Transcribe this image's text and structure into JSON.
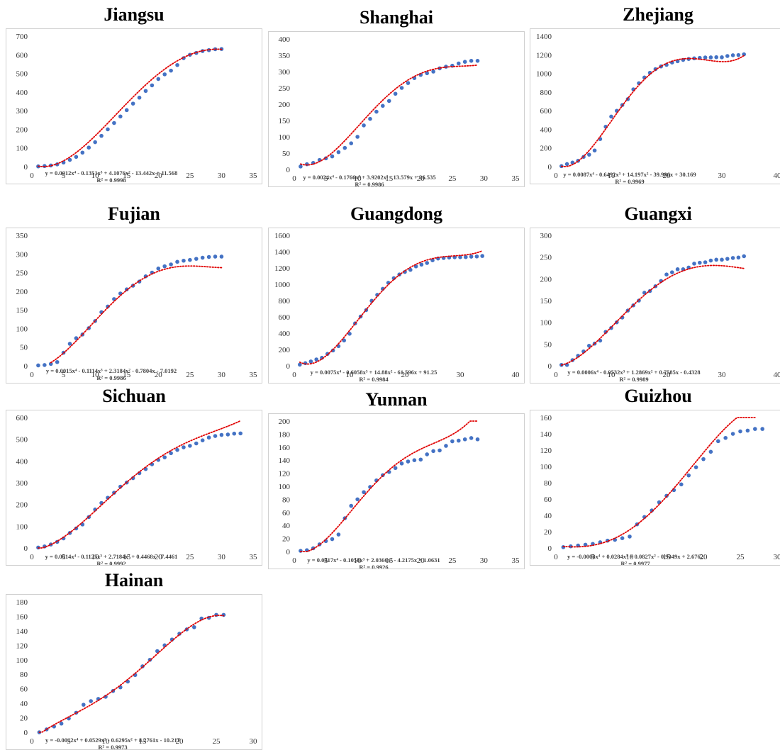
{
  "chart_data": [
    {
      "type": "scatter",
      "title": "Jiangsu",
      "xlim": [
        0,
        35
      ],
      "ylim": [
        0,
        700
      ],
      "xticks": [
        0,
        5,
        10,
        15,
        20,
        25,
        30,
        35
      ],
      "yticks": [
        0,
        100,
        200,
        300,
        400,
        500,
        600,
        700
      ],
      "trendline": {
        "equation": "y = 0.0012x⁴ - 0.1351x³ + 4.1076x² - 13.442x + 11.568",
        "r2": "R² = 0.9998",
        "coef": [
          11.568,
          -13.442,
          4.1076,
          -0.1351,
          0.0012
        ],
        "x_range": [
          1,
          30
        ]
      },
      "x": [
        1,
        2,
        3,
        4,
        5,
        6,
        7,
        8,
        9,
        10,
        11,
        12,
        13,
        14,
        15,
        16,
        17,
        18,
        19,
        20,
        21,
        22,
        23,
        24,
        25,
        26,
        27,
        28,
        29,
        30
      ],
      "y": [
        1,
        3,
        6,
        12,
        22,
        36,
        52,
        75,
        102,
        131,
        165,
        200,
        234,
        269,
        303,
        338,
        370,
        406,
        436,
        470,
        495,
        515,
        545,
        582,
        600,
        610,
        620,
        625,
        630,
        631
      ],
      "grid": false,
      "legend": "none",
      "colors": {
        "points": "#4472c4",
        "trend": "#e00000"
      }
    },
    {
      "type": "scatter",
      "title": "Shanghai",
      "xlim": [
        0,
        35
      ],
      "ylim": [
        0,
        400
      ],
      "xticks": [
        0,
        5,
        10,
        15,
        20,
        25,
        30,
        35
      ],
      "yticks": [
        0,
        50,
        100,
        150,
        200,
        250,
        300,
        350,
        400
      ],
      "trendline": {
        "equation": "y = 0.0024x⁴ - 0.1766x³ + 3.9202x² - 13.579x + 26.535",
        "r2": "R² = 0.9986",
        "coef": [
          26.535,
          -13.579,
          3.9202,
          -0.1766,
          0.0024
        ],
        "x_range": [
          1,
          29
        ]
      },
      "x": [
        1,
        2,
        3,
        4,
        5,
        6,
        7,
        8,
        9,
        10,
        11,
        12,
        13,
        14,
        15,
        16,
        17,
        18,
        19,
        20,
        21,
        22,
        23,
        24,
        25,
        26,
        27,
        28,
        29
      ],
      "y": [
        9,
        16,
        20,
        29,
        34,
        40,
        53,
        66,
        80,
        100,
        135,
        155,
        177,
        195,
        210,
        232,
        250,
        265,
        280,
        290,
        295,
        300,
        310,
        315,
        318,
        325,
        330,
        333,
        333
      ],
      "grid": false,
      "legend": "none",
      "colors": {
        "points": "#4472c4",
        "trend": "#e00000"
      }
    },
    {
      "type": "scatter",
      "title": "Zhejiang",
      "xlim": [
        0,
        40
      ],
      "ylim": [
        0,
        1400
      ],
      "xticks": [
        0,
        10,
        20,
        30,
        40
      ],
      "yticks": [
        0,
        200,
        400,
        600,
        800,
        1000,
        1200,
        1400
      ],
      "trendline": {
        "equation": "y = 0.0087x⁴ - 0.6492x³ + 14.197x² - 39.986x + 30.169",
        "r2": "R² = 0.9969",
        "coef": [
          30.169,
          -39.986,
          14.197,
          -0.6492,
          0.0087
        ],
        "x_range": [
          1,
          34
        ]
      },
      "x": [
        1,
        2,
        3,
        4,
        5,
        6,
        7,
        8,
        9,
        10,
        11,
        12,
        13,
        14,
        15,
        16,
        17,
        18,
        19,
        20,
        21,
        22,
        23,
        24,
        25,
        26,
        27,
        28,
        29,
        30,
        31,
        32,
        33,
        34
      ],
      "y": [
        5,
        27,
        43,
        62,
        104,
        128,
        173,
        296,
        428,
        537,
        599,
        661,
        724,
        829,
        895,
        956,
        1007,
        1046,
        1075,
        1092,
        1117,
        1131,
        1145,
        1155,
        1162,
        1167,
        1171,
        1172,
        1174,
        1173,
        1187,
        1195,
        1197,
        1205
      ],
      "grid": false,
      "legend": "none",
      "colors": {
        "points": "#4472c4",
        "trend": "#e00000"
      }
    },
    {
      "type": "scatter",
      "title": "Fujian",
      "xlim": [
        0,
        35
      ],
      "ylim": [
        0,
        350
      ],
      "xticks": [
        0,
        5,
        10,
        15,
        20,
        25,
        30,
        35
      ],
      "yticks": [
        0,
        50,
        100,
        150,
        200,
        250,
        300,
        350
      ],
      "trendline": {
        "equation": "y = 0.0015x⁴ - 0.1114x³ + 2.3184x² - 0.7804x - 7.0192",
        "r2": "R² = 0.9986",
        "coef": [
          -7.0192,
          -0.7804,
          2.3184,
          -0.1114,
          0.0015
        ],
        "x_range": [
          3,
          30
        ]
      },
      "x": [
        1,
        2,
        3,
        4,
        5,
        6,
        7,
        8,
        9,
        10,
        11,
        12,
        13,
        14,
        15,
        16,
        17,
        18,
        19,
        20,
        21,
        22,
        23,
        24,
        25,
        26,
        27,
        28,
        29,
        30
      ],
      "y": [
        1,
        2,
        5,
        10,
        35,
        59,
        74,
        84,
        101,
        120,
        144,
        159,
        179,
        194,
        205,
        215,
        226,
        240,
        250,
        261,
        267,
        272,
        279,
        282,
        284,
        287,
        290,
        292,
        293,
        293
      ],
      "grid": false,
      "legend": "none",
      "colors": {
        "points": "#4472c4",
        "trend": "#e00000"
      }
    },
    {
      "type": "scatter",
      "title": "Guangdong",
      "xlim": [
        0,
        40
      ],
      "ylim": [
        0,
        1600
      ],
      "xticks": [
        0,
        10,
        20,
        30,
        40
      ],
      "yticks": [
        0,
        200,
        400,
        600,
        800,
        1000,
        1200,
        1400,
        1600
      ],
      "trendline": {
        "equation": "y = 0.0075x⁴ - 0.6058x³ + 14.88x² - 61.596x + 91.25",
        "r2": "R² = 0.9984",
        "coef": [
          91.25,
          -61.596,
          14.88,
          -0.6058,
          0.0075
        ],
        "x_range": [
          1,
          34
        ]
      },
      "x": [
        1,
        2,
        3,
        4,
        5,
        6,
        7,
        8,
        9,
        10,
        11,
        12,
        13,
        14,
        15,
        16,
        17,
        18,
        19,
        20,
        21,
        22,
        23,
        24,
        25,
        26,
        27,
        28,
        29,
        30,
        31,
        32,
        33,
        34
      ],
      "y": [
        14,
        32,
        53,
        78,
        98,
        146,
        188,
        241,
        311,
        393,
        520,
        604,
        683,
        797,
        870,
        944,
        1018,
        1075,
        1120,
        1151,
        1177,
        1219,
        1241,
        1261,
        1294,
        1316,
        1322,
        1328,
        1331,
        1332,
        1333,
        1339,
        1341,
        1347
      ],
      "grid": false,
      "legend": "none",
      "colors": {
        "points": "#4472c4",
        "trend": "#e00000"
      }
    },
    {
      "type": "scatter",
      "title": "Guangxi",
      "xlim": [
        0,
        40
      ],
      "ylim": [
        0,
        300
      ],
      "xticks": [
        0,
        10,
        20,
        30,
        40
      ],
      "yticks": [
        0,
        50,
        100,
        150,
        200,
        250,
        300
      ],
      "trendline": {
        "equation": "y = 0.0006x⁴ - 0.0532x³ + 1.2869x² + 0.7585x - 0.4328",
        "r2": "R² = 0.9989",
        "coef": [
          -0.4328,
          0.7585,
          1.2869,
          -0.0532,
          0.0006
        ],
        "x_range": [
          1,
          34
        ]
      },
      "x": [
        1,
        2,
        3,
        4,
        5,
        6,
        7,
        8,
        9,
        10,
        11,
        12,
        13,
        14,
        15,
        16,
        17,
        18,
        19,
        20,
        21,
        22,
        23,
        24,
        25,
        26,
        27,
        28,
        29,
        30,
        31,
        32,
        33,
        34
      ],
      "y": [
        2,
        2,
        13,
        23,
        33,
        46,
        51,
        58,
        78,
        87,
        100,
        111,
        127,
        139,
        150,
        168,
        172,
        183,
        195,
        210,
        215,
        222,
        222,
        226,
        235,
        237,
        238,
        242,
        244,
        244,
        246,
        248,
        249,
        252
      ],
      "grid": false,
      "legend": "none",
      "colors": {
        "points": "#4472c4",
        "trend": "#e00000"
      }
    },
    {
      "type": "scatter",
      "title": "Sichuan",
      "xlim": [
        0,
        35
      ],
      "ylim": [
        0,
        600
      ],
      "xticks": [
        0,
        5,
        10,
        15,
        20,
        25,
        30,
        35
      ],
      "yticks": [
        0,
        100,
        200,
        300,
        400,
        500,
        600
      ],
      "trendline": {
        "equation": "y = 0.0014x⁴ - 0.1125x³ + 2.7184x² + 0.4468x - 7.4461",
        "r2": "R² = 0.9992",
        "coef": [
          -7.4461,
          0.4468,
          2.7184,
          -0.1125,
          0.0014
        ],
        "x_range": [
          1,
          33
        ]
      },
      "x": [
        1,
        2,
        3,
        4,
        5,
        6,
        7,
        8,
        9,
        10,
        11,
        12,
        13,
        14,
        15,
        16,
        17,
        18,
        19,
        20,
        21,
        22,
        23,
        24,
        25,
        26,
        27,
        28,
        29,
        30,
        31,
        32,
        33
      ],
      "y": [
        2,
        7,
        16,
        28,
        44,
        69,
        90,
        108,
        142,
        177,
        207,
        231,
        254,
        282,
        301,
        321,
        344,
        363,
        385,
        405,
        417,
        436,
        451,
        463,
        470,
        481,
        495,
        508,
        515,
        520,
        522,
        526,
        527
      ],
      "grid": false,
      "legend": "none",
      "colors": {
        "points": "#4472c4",
        "trend": "#e00000"
      }
    },
    {
      "type": "scatter",
      "title": "Yunnan",
      "xlim": [
        0,
        35
      ],
      "ylim": [
        0,
        200
      ],
      "xticks": [
        0,
        5,
        10,
        15,
        20,
        25,
        30,
        35
      ],
      "yticks": [
        0,
        20,
        40,
        60,
        80,
        100,
        120,
        140,
        160,
        180,
        200
      ],
      "trendline": {
        "equation": "y = 0.0017x⁴ - 0.1058x³ + 2.0366x² - 4.2175x + 1.0631",
        "r2": "R² = 0.9926",
        "coef": [
          1.0631,
          -4.2175,
          2.0366,
          -0.1058,
          0.0017
        ],
        "x_range": [
          1,
          29
        ]
      },
      "x": [
        1,
        2,
        3,
        4,
        5,
        6,
        7,
        8,
        9,
        10,
        11,
        12,
        13,
        14,
        15,
        16,
        17,
        18,
        19,
        20,
        21,
        22,
        23,
        24,
        25,
        26,
        27,
        28,
        29
      ],
      "y": [
        1,
        2,
        5,
        11,
        16,
        19,
        26,
        51,
        70,
        80,
        91,
        99,
        109,
        117,
        122,
        128,
        135,
        138,
        140,
        141,
        149,
        154,
        155,
        162,
        169,
        170,
        172,
        174,
        172
      ],
      "grid": false,
      "legend": "none",
      "colors": {
        "points": "#4472c4",
        "trend": "#e00000"
      }
    },
    {
      "type": "scatter",
      "title": "Guizhou",
      "xlim": [
        0,
        30
      ],
      "ylim": [
        0,
        160
      ],
      "xticks": [
        0,
        5,
        10,
        15,
        20,
        25,
        30
      ],
      "yticks": [
        0,
        20,
        40,
        60,
        80,
        100,
        120,
        140,
        160
      ],
      "trendline": {
        "equation": "y = -0.0008x⁴ + 0.0284x³ + 0.0827x² - 0.9049x + 2.6762",
        "r2": "R² = 0.9977",
        "coef": [
          2.6762,
          -0.9049,
          0.0827,
          0.0284,
          -0.0008
        ],
        "x_range": [
          1,
          27
        ]
      },
      "x": [
        1,
        2,
        3,
        4,
        5,
        6,
        7,
        8,
        9,
        10,
        11,
        12,
        13,
        14,
        15,
        16,
        17,
        18,
        19,
        20,
        21,
        22,
        23,
        24,
        25,
        26,
        27,
        28
      ],
      "y": [
        1,
        2,
        3,
        4,
        5,
        7,
        9,
        10,
        12,
        14,
        29,
        38,
        46,
        56,
        64,
        71,
        78,
        89,
        99,
        109,
        118,
        131,
        135,
        140,
        143,
        144,
        146,
        146
      ],
      "grid": false,
      "legend": "none",
      "colors": {
        "points": "#4472c4",
        "trend": "#e00000"
      }
    },
    {
      "type": "scatter",
      "title": "Hainan",
      "xlim": [
        0,
        30
      ],
      "ylim": [
        0,
        180
      ],
      "xticks": [
        0,
        5,
        10,
        15,
        20,
        25,
        30
      ],
      "yticks": [
        0,
        20,
        40,
        60,
        80,
        100,
        120,
        140,
        160,
        180
      ],
      "trendline": {
        "equation": "y = -0.0012x⁴ + 0.0529x³ - 0.6295x² + 8.2761x - 10.217",
        "r2": "R² = 0.9973",
        "coef": [
          -10.217,
          8.2761,
          -0.6295,
          0.0529,
          -0.0012
        ],
        "x_range": [
          1,
          26
        ]
      },
      "x": [
        1,
        2,
        3,
        4,
        5,
        6,
        7,
        8,
        9,
        10,
        11,
        12,
        13,
        14,
        15,
        16,
        17,
        18,
        19,
        20,
        21,
        22,
        23,
        24,
        25,
        26
      ],
      "y": [
        0,
        4,
        8,
        12,
        19,
        27,
        38,
        43,
        46,
        49,
        57,
        62,
        70,
        79,
        91,
        100,
        112,
        120,
        128,
        136,
        142,
        145,
        157,
        158,
        162,
        162
      ],
      "grid": false,
      "legend": "none",
      "colors": {
        "points": "#4472c4",
        "trend": "#e00000"
      }
    }
  ]
}
